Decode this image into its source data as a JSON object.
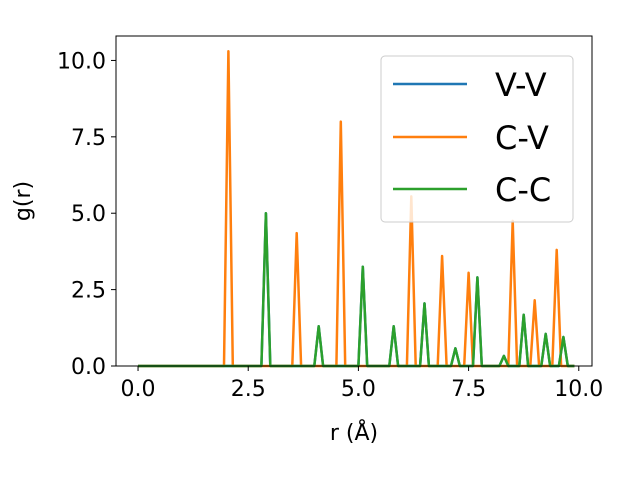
{
  "chart_data": {
    "type": "line",
    "xlabel": "r (Å)",
    "ylabel": "g(r)",
    "xlim": [
      -0.5,
      10.3
    ],
    "ylim": [
      0,
      10.8
    ],
    "xticks": [
      0.0,
      2.5,
      5.0,
      7.5,
      10.0
    ],
    "xtick_labels": [
      "0.0",
      "2.5",
      "5.0",
      "7.5",
      "10.0"
    ],
    "yticks": [
      0.0,
      2.5,
      5.0,
      7.5,
      10.0
    ],
    "ytick_labels": [
      "0.0",
      "2.5",
      "5.0",
      "7.5",
      "10.0"
    ],
    "grid": false,
    "legend_position": "top-right",
    "series": [
      {
        "name": "V-V",
        "color": "#1f77b4",
        "peaks": [
          [
            2.9,
            5.0
          ],
          [
            4.1,
            1.3
          ],
          [
            5.1,
            3.25
          ],
          [
            5.8,
            1.3
          ],
          [
            6.5,
            2.05
          ],
          [
            7.2,
            0.58
          ],
          [
            7.7,
            2.9
          ],
          [
            8.3,
            0.33
          ],
          [
            8.75,
            1.68
          ],
          [
            9.25,
            1.05
          ],
          [
            9.65,
            0.95
          ]
        ]
      },
      {
        "name": "C-V",
        "color": "#ff7f0e",
        "peaks": [
          [
            2.05,
            10.3
          ],
          [
            3.6,
            4.35
          ],
          [
            4.6,
            8.0
          ],
          [
            6.2,
            5.55
          ],
          [
            6.9,
            3.6
          ],
          [
            7.5,
            3.05
          ],
          [
            8.5,
            4.75
          ],
          [
            9.0,
            2.15
          ],
          [
            9.5,
            3.8
          ]
        ]
      },
      {
        "name": "C-C",
        "color": "#2ca02c",
        "peaks": [
          [
            2.9,
            5.0
          ],
          [
            4.1,
            1.3
          ],
          [
            5.1,
            3.25
          ],
          [
            5.8,
            1.3
          ],
          [
            6.5,
            2.05
          ],
          [
            7.2,
            0.58
          ],
          [
            7.7,
            2.9
          ],
          [
            8.3,
            0.33
          ],
          [
            8.75,
            1.68
          ],
          [
            9.25,
            1.05
          ],
          [
            9.65,
            0.95
          ]
        ]
      }
    ],
    "x_start": 0.0,
    "x_end": 9.9,
    "peak_half_width": 0.1
  }
}
